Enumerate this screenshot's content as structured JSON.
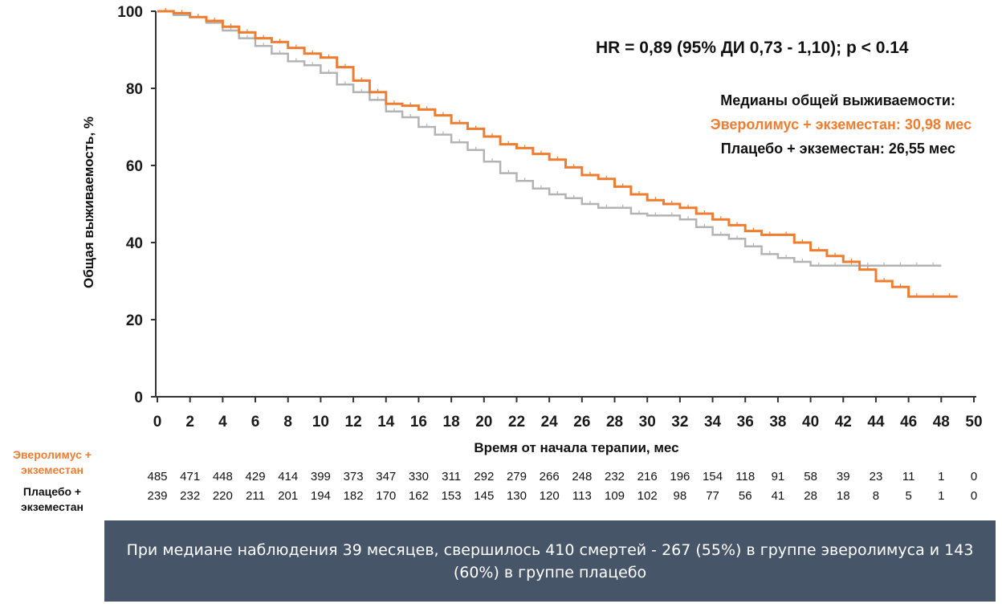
{
  "chart_data": {
    "type": "line",
    "ylabel": "Общая выживаемость, %",
    "xlabel": "Время от начала терапии, мес",
    "xlim": [
      0,
      50
    ],
    "ylim": [
      0,
      100
    ],
    "x_ticks": [
      0,
      2,
      4,
      6,
      8,
      10,
      12,
      14,
      16,
      18,
      20,
      22,
      24,
      26,
      28,
      30,
      32,
      34,
      36,
      38,
      40,
      42,
      44,
      46,
      48,
      50
    ],
    "y_ticks": [
      0,
      20,
      40,
      60,
      80,
      100
    ],
    "annotation": "HR = 0,89 (95% ДИ 0,73 - 1,10); p < 0.14",
    "median_title": "Медианы общей выживаемости:",
    "median_everolimus": "Эверолимус + экземестан: 30,98 мес",
    "median_placebo": "Плацебо + экземестан: 26,55 мес",
    "series": [
      {
        "name": "Эверолимус + экземестан",
        "color": "#ee7d31",
        "x": [
          0,
          1,
          2,
          3,
          4,
          5,
          6,
          7,
          8,
          9,
          10,
          11,
          12,
          13,
          14,
          15,
          16,
          17,
          18,
          19,
          20,
          21,
          22,
          23,
          24,
          25,
          26,
          27,
          28,
          29,
          30,
          31,
          32,
          33,
          34,
          35,
          36,
          37,
          38,
          39,
          40,
          41,
          42,
          43,
          44,
          45,
          46,
          47,
          48,
          49
        ],
        "y": [
          100,
          99.5,
          98.5,
          97.5,
          96,
          94.5,
          93,
          92,
          90.5,
          89,
          88,
          85.5,
          82,
          79,
          76,
          75.5,
          74.5,
          73,
          71,
          69.5,
          67.5,
          65.5,
          64.5,
          63,
          61.5,
          59.5,
          57.5,
          56.5,
          54.5,
          52.5,
          51,
          50,
          49,
          47.5,
          46,
          44.5,
          43,
          42,
          42,
          40,
          38,
          36.5,
          35,
          33,
          30,
          28.5,
          26,
          26,
          26,
          26
        ]
      },
      {
        "name": "Плацебо + экземестан",
        "color": "#b3b3b3",
        "x": [
          0,
          1,
          2,
          3,
          4,
          5,
          6,
          7,
          8,
          9,
          10,
          11,
          12,
          13,
          14,
          15,
          16,
          17,
          18,
          19,
          20,
          21,
          22,
          23,
          24,
          25,
          26,
          27,
          28,
          29,
          30,
          31,
          32,
          33,
          34,
          35,
          36,
          37,
          38,
          39,
          40,
          41,
          42,
          43,
          44,
          45,
          46,
          47,
          48
        ],
        "y": [
          100,
          99,
          98.5,
          97,
          95,
          93,
          91,
          89,
          87,
          86,
          84,
          81,
          79,
          77,
          74,
          72.5,
          70,
          68,
          66,
          64,
          61,
          58,
          56,
          54,
          52.5,
          51.5,
          50,
          49,
          49,
          47.5,
          47,
          47,
          46,
          44,
          42,
          41,
          39,
          37,
          36,
          35,
          34,
          34,
          34,
          34,
          34,
          34,
          34,
          34,
          34
        ]
      }
    ]
  },
  "risk_table": {
    "everolimus_label": "Эверолимус + экземестан",
    "placebo_label": "Плацебо + экземестан",
    "everolimus_counts": [
      "485",
      "471",
      "448",
      "429",
      "414",
      "399",
      "373",
      "347",
      "330",
      "311",
      "292",
      "279",
      "266",
      "248",
      "232",
      "216",
      "196",
      "154",
      "118",
      "91",
      "58",
      "39",
      "23",
      "11",
      "1",
      "0"
    ],
    "placebo_counts": [
      "239",
      "232",
      "220",
      "211",
      "201",
      "194",
      "182",
      "170",
      "162",
      "153",
      "145",
      "130",
      "120",
      "113",
      "109",
      "102",
      "98",
      "77",
      "56",
      "41",
      "28",
      "18",
      "8",
      "5",
      "1",
      "0"
    ]
  },
  "footer": {
    "text": "При медиане наблюдения 39 месяцев, свершилось 410 смертей - 267 (55%) в группе эверолимуса и 143 (60%) в группе плацебо"
  }
}
